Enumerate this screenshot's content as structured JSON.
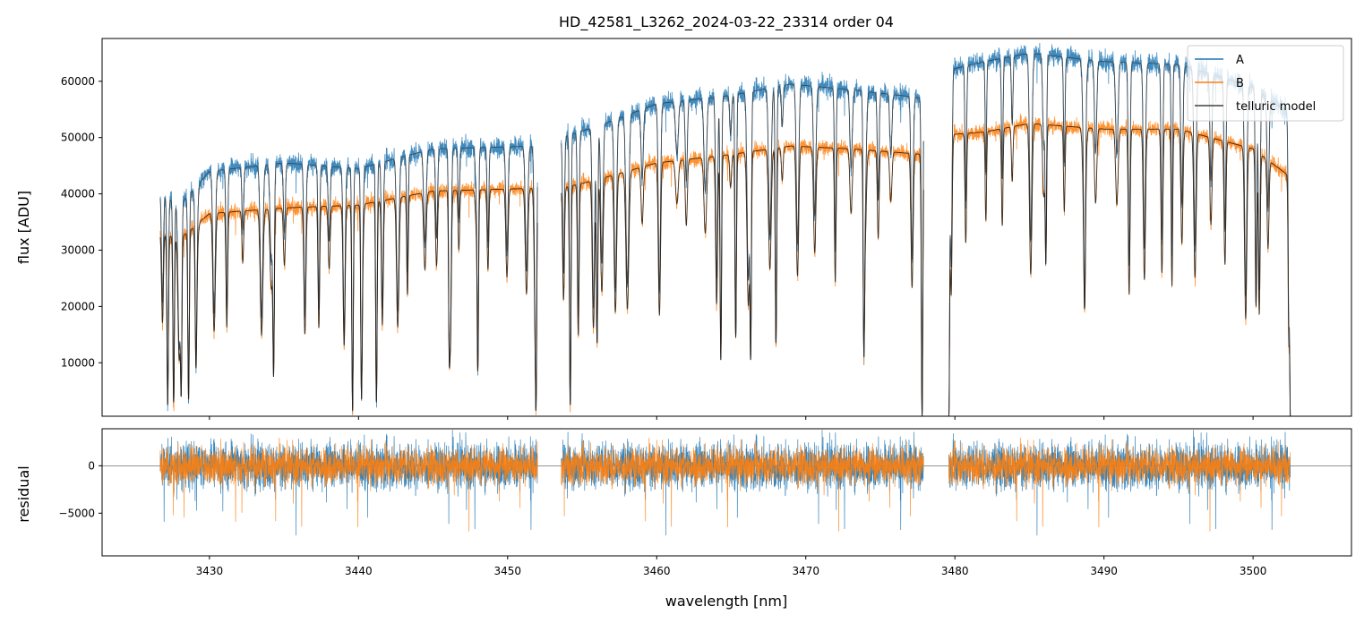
{
  "chart_data": [
    {
      "type": "line",
      "title": "HD_42581_L3262_2024-03-22_23314  order 04",
      "xlabel": "",
      "ylabel": "flux [ADU]",
      "xlim": [
        3422.8,
        3506.6
      ],
      "ylim": [
        500,
        67600
      ],
      "y_ticks": [
        10000,
        20000,
        30000,
        40000,
        50000,
        60000
      ],
      "x_ticks": [
        3430,
        3440,
        3450,
        3460,
        3470,
        3480,
        3490,
        3500
      ],
      "legend": {
        "placement": "top-right",
        "entries": [
          "A",
          "B",
          "telluric model"
        ]
      },
      "series": [
        {
          "name": "A",
          "color": "#1f77b4"
        },
        {
          "name": "B",
          "color": "#ff7f0e"
        },
        {
          "name": "telluric model",
          "color": "#404040"
        }
      ],
      "segments": [
        {
          "x": [
            3426.7,
            3452.0
          ],
          "continuum_A": [
            [
              3426.7,
              40000
            ],
            [
              3428,
              38000
            ],
            [
              3430,
              44000
            ],
            [
              3435,
              45500
            ],
            [
              3440,
              44500
            ],
            [
              3445,
              48000
            ],
            [
              3452.0,
              48500
            ]
          ],
          "continuum_B": [
            [
              3426.7,
              33000
            ],
            [
              3428,
              32000
            ],
            [
              3430,
              36500
            ],
            [
              3435,
              37500
            ],
            [
              3440,
              38000
            ],
            [
              3445,
              40500
            ],
            [
              3452.0,
              41000
            ]
          ]
        },
        {
          "x": [
            3453.6,
            3477.9
          ],
          "continuum_A": [
            [
              3453.6,
              50000
            ],
            [
              3456,
              52000
            ],
            [
              3460,
              56000
            ],
            [
              3465,
              57500
            ],
            [
              3469,
              59500
            ],
            [
              3473,
              58500
            ],
            [
              3477.9,
              57000
            ]
          ],
          "continuum_B": [
            [
              3453.6,
              41000
            ],
            [
              3456,
              42500
            ],
            [
              3460,
              45500
            ],
            [
              3465,
              47000
            ],
            [
              3469,
              48500
            ],
            [
              3473,
              48000
            ],
            [
              3477.9,
              47000
            ]
          ]
        },
        {
          "x": [
            3479.6,
            3502.5
          ],
          "continuum_A": [
            [
              3479.6,
              62000
            ],
            [
              3482,
              63500
            ],
            [
              3485,
              65000
            ],
            [
              3490,
              63500
            ],
            [
              3495,
              63000
            ],
            [
              3500,
              59000
            ],
            [
              3502.5,
              54000
            ]
          ],
          "continuum_B": [
            [
              3479.6,
              50500
            ],
            [
              3482,
              51000
            ],
            [
              3485,
              52500
            ],
            [
              3490,
              51500
            ],
            [
              3495,
              51500
            ],
            [
              3500,
              48000
            ],
            [
              3502.5,
              43000
            ]
          ]
        }
      ],
      "deep_lines": [
        [
          3427.2,
          2500
        ],
        [
          3427.6,
          3000
        ],
        [
          3428.1,
          4000
        ],
        [
          3428.6,
          3500
        ],
        [
          3429.1,
          9000
        ],
        [
          3434.3,
          7500
        ],
        [
          3439.6,
          1500
        ],
        [
          3440.2,
          3500
        ],
        [
          3441.2,
          3000
        ],
        [
          3446.1,
          9000
        ],
        [
          3448.0,
          8500
        ],
        [
          3451.9,
          1500
        ],
        [
          3454.2,
          2500
        ],
        [
          3456.0,
          13500
        ],
        [
          3464.3,
          10500
        ],
        [
          3465.3,
          14500
        ],
        [
          3466.3,
          10500
        ],
        [
          3468.0,
          13500
        ],
        [
          3473.9,
          11000
        ],
        [
          3477.8,
          500
        ],
        [
          3479.6,
          500
        ],
        [
          3486.1,
          27500
        ],
        [
          3488.7,
          19500
        ],
        [
          3500.2,
          20000
        ],
        [
          3502.5,
          500
        ]
      ]
    },
    {
      "type": "line",
      "title": "",
      "xlabel": "wavelength [nm]",
      "ylabel": "residual",
      "xlim": [
        3422.8,
        3506.6
      ],
      "ylim": [
        -9500,
        3900
      ],
      "y_ticks": [
        -5000,
        0
      ],
      "x_ticks": [
        3430,
        3440,
        3450,
        3460,
        3470,
        3480,
        3490,
        3500
      ],
      "reference_line": 0,
      "series": [
        {
          "name": "A",
          "color": "#1f77b4"
        },
        {
          "name": "B",
          "color": "#ff7f0e"
        }
      ]
    }
  ]
}
